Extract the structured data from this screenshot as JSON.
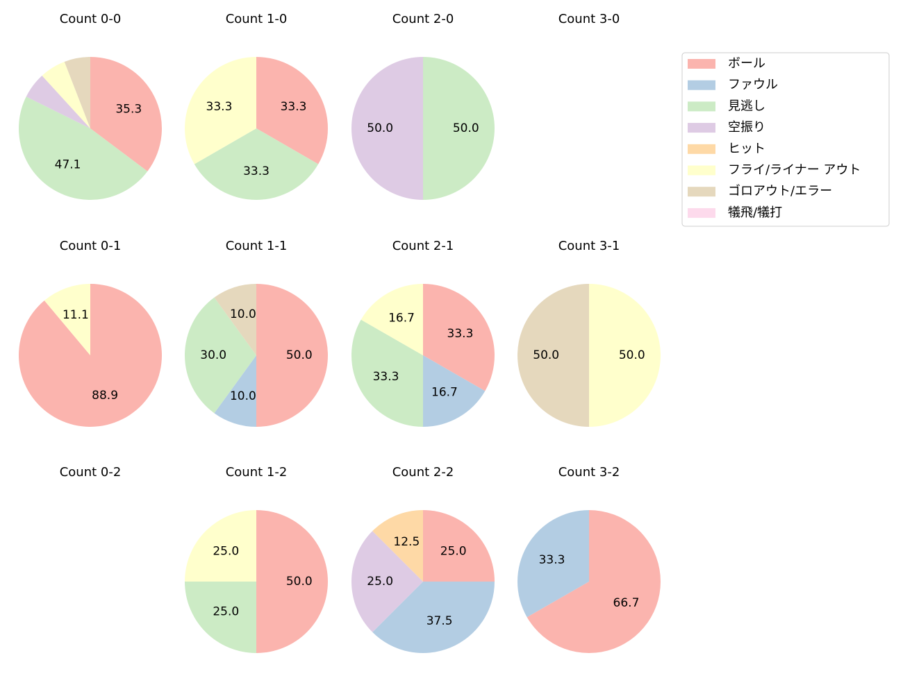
{
  "chart_data": [
    {
      "type": "pie",
      "title": "Count 0-0",
      "values": [
        35.3,
        null,
        47.1,
        5.9,
        null,
        5.9,
        5.9,
        null
      ],
      "value_labels": [
        "35.3",
        null,
        "47.1",
        null,
        null,
        null,
        null,
        null
      ]
    },
    {
      "type": "pie",
      "title": "Count 1-0",
      "values": [
        33.3,
        null,
        33.3,
        null,
        null,
        33.3,
        null,
        null
      ],
      "value_labels": [
        "33.3",
        null,
        "33.3",
        null,
        null,
        "33.3",
        null,
        null
      ]
    },
    {
      "type": "pie",
      "title": "Count 2-0",
      "values": [
        null,
        null,
        50,
        50,
        null,
        null,
        null,
        null
      ],
      "value_labels": [
        null,
        null,
        "50.0",
        "50.0",
        null,
        null,
        null,
        null
      ]
    },
    {
      "type": "pie",
      "title": "Count 3-0",
      "values": [
        null,
        null,
        null,
        null,
        null,
        null,
        null,
        null
      ],
      "value_labels": [
        null,
        null,
        null,
        null,
        null,
        null,
        null,
        null
      ]
    },
    {
      "type": "pie",
      "title": "Count 0-1",
      "values": [
        88.9,
        null,
        null,
        null,
        null,
        11.1,
        null,
        null
      ],
      "value_labels": [
        "88.9",
        null,
        null,
        null,
        null,
        "11.1",
        null,
        null
      ]
    },
    {
      "type": "pie",
      "title": "Count 1-1",
      "values": [
        50,
        10,
        30,
        null,
        null,
        null,
        10,
        null
      ],
      "value_labels": [
        "50.0",
        "10.0",
        "30.0",
        null,
        null,
        null,
        "10.0",
        null
      ]
    },
    {
      "type": "pie",
      "title": "Count 2-1",
      "values": [
        33.3,
        16.7,
        33.3,
        null,
        null,
        16.7,
        null,
        null
      ],
      "value_labels": [
        "33.3",
        "16.7",
        "33.3",
        null,
        null,
        "16.7",
        null,
        null
      ]
    },
    {
      "type": "pie",
      "title": "Count 3-1",
      "values": [
        null,
        null,
        null,
        null,
        null,
        50,
        50,
        null
      ],
      "value_labels": [
        null,
        null,
        null,
        null,
        null,
        "50.0",
        "50.0",
        null
      ]
    },
    {
      "type": "pie",
      "title": "Count 0-2",
      "values": [
        null,
        null,
        null,
        null,
        null,
        null,
        null,
        null
      ],
      "value_labels": [
        null,
        null,
        null,
        null,
        null,
        null,
        null,
        null
      ]
    },
    {
      "type": "pie",
      "title": "Count 1-2",
      "values": [
        50,
        null,
        25,
        null,
        null,
        25,
        null,
        null
      ],
      "value_labels": [
        "50.0",
        null,
        "25.0",
        null,
        null,
        "25.0",
        null,
        null
      ]
    },
    {
      "type": "pie",
      "title": "Count 2-2",
      "values": [
        25,
        37.5,
        null,
        25,
        12.5,
        null,
        null,
        null
      ],
      "value_labels": [
        "25.0",
        "37.5",
        null,
        "25.0",
        "12.5",
        null,
        null,
        null
      ]
    },
    {
      "type": "pie",
      "title": "Count 3-2",
      "values": [
        66.7,
        33.3,
        null,
        null,
        null,
        null,
        null,
        null
      ],
      "value_labels": [
        "66.7",
        "33.3",
        null,
        null,
        null,
        null,
        null,
        null
      ]
    }
  ],
  "legend": {
    "labels": [
      "ボール",
      "ファウル",
      "見逃し",
      "空振り",
      "ヒット",
      "フライ/ライナー アウト",
      "ゴロアウト/エラー",
      "犠飛/犠打"
    ],
    "colors": [
      "#fbb4ae",
      "#b3cde3",
      "#ccebc5",
      "#decbe4",
      "#fed9a6",
      "#ffffcc",
      "#e5d8bd",
      "#fddaec"
    ]
  }
}
